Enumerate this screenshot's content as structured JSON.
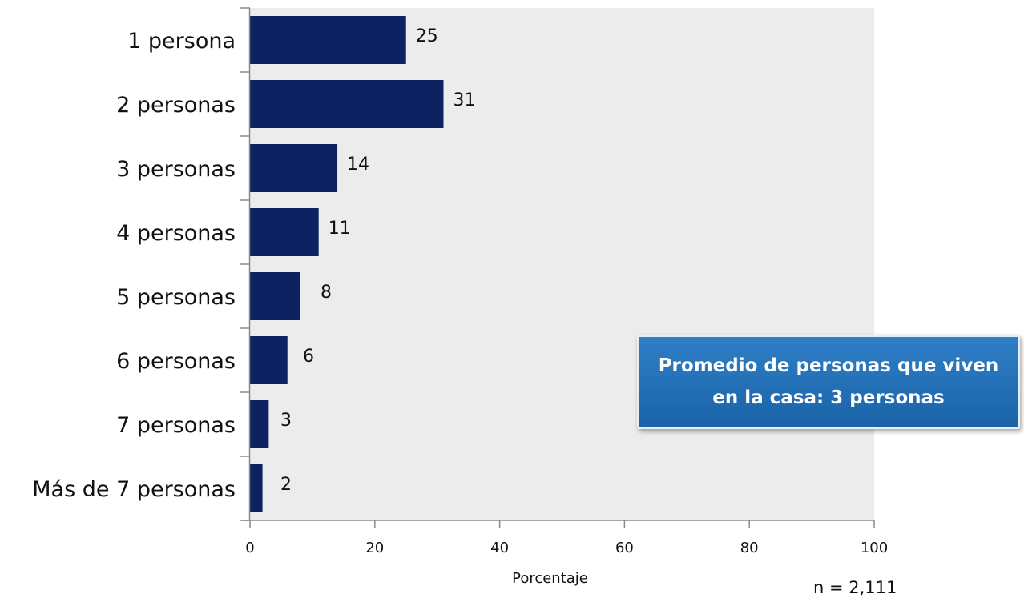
{
  "chart_data": {
    "type": "bar",
    "orientation": "horizontal",
    "categories": [
      "1 persona",
      "2 personas",
      "3 personas",
      "4 personas",
      "5 personas",
      "6 personas",
      "7 personas",
      "Más de 7 personas"
    ],
    "values": [
      25,
      31,
      14,
      11,
      8,
      6,
      3,
      2
    ],
    "xlabel": "Porcentaje",
    "xlim": [
      0,
      100
    ],
    "xticks": [
      0,
      20,
      40,
      60,
      80,
      100
    ],
    "grid": false,
    "bar_color": "#0d2260",
    "plot_background": "#ececec"
  },
  "callout": {
    "text": "Promedio de personas que viven en la casa: 3 personas"
  },
  "note": "n = 2,111"
}
